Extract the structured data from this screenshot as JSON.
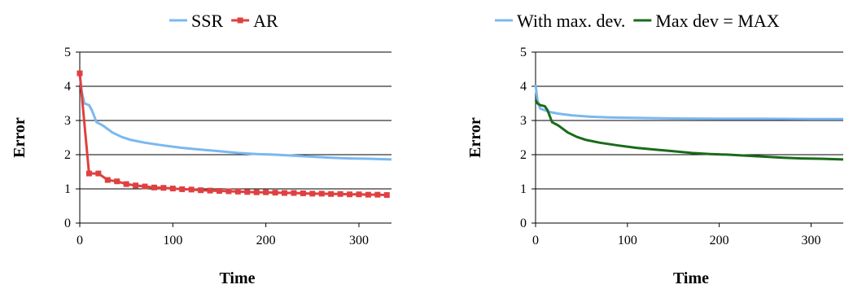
{
  "chart_data": [
    {
      "type": "line",
      "title": "",
      "xlabel": "Time",
      "ylabel": "Error",
      "xlim": [
        0,
        335
      ],
      "ylim": [
        0,
        5
      ],
      "x_ticks": [
        0,
        100,
        200,
        300
      ],
      "y_ticks": [
        0,
        1,
        2,
        3,
        4,
        5
      ],
      "grid": "horizontal",
      "legend_position": "top",
      "series": [
        {
          "name": "SSR",
          "color": "#7ab8f0",
          "marker": "none",
          "x": [
            0,
            2,
            5,
            10,
            13,
            18,
            25,
            35,
            45,
            55,
            70,
            90,
            110,
            130,
            150,
            170,
            190,
            210,
            230,
            250,
            270,
            290,
            310,
            335
          ],
          "y": [
            4.35,
            3.85,
            3.5,
            3.45,
            3.3,
            2.95,
            2.85,
            2.65,
            2.52,
            2.43,
            2.35,
            2.27,
            2.2,
            2.15,
            2.1,
            2.05,
            2.02,
            2.0,
            1.97,
            1.94,
            1.91,
            1.89,
            1.88,
            1.86
          ]
        },
        {
          "name": "AR",
          "color": "#e04040",
          "marker": "square",
          "x": [
            0,
            10,
            20,
            30,
            40,
            50,
            60,
            70,
            80,
            90,
            100,
            110,
            120,
            130,
            140,
            150,
            160,
            170,
            180,
            190,
            200,
            210,
            220,
            230,
            240,
            250,
            260,
            270,
            280,
            290,
            300,
            310,
            320,
            330
          ],
          "y": [
            4.38,
            1.45,
            1.45,
            1.26,
            1.22,
            1.14,
            1.1,
            1.07,
            1.04,
            1.03,
            1.01,
            0.99,
            0.98,
            0.96,
            0.95,
            0.94,
            0.93,
            0.92,
            0.91,
            0.9,
            0.9,
            0.89,
            0.88,
            0.88,
            0.87,
            0.86,
            0.86,
            0.85,
            0.85,
            0.84,
            0.84,
            0.83,
            0.83,
            0.82
          ]
        }
      ]
    },
    {
      "type": "line",
      "title": "",
      "xlabel": "Time",
      "ylabel": "Error",
      "xlim": [
        0,
        335
      ],
      "ylim": [
        0,
        5
      ],
      "x_ticks": [
        0,
        100,
        200,
        300
      ],
      "y_ticks": [
        0,
        1,
        2,
        3,
        4,
        5
      ],
      "grid": "horizontal",
      "legend_position": "top",
      "series": [
        {
          "name": "With max. dev.",
          "color": "#7ab8f0",
          "marker": "none",
          "x": [
            0,
            2,
            5,
            10,
            15,
            25,
            40,
            60,
            80,
            100,
            150,
            200,
            250,
            300,
            335
          ],
          "y": [
            4.05,
            3.6,
            3.35,
            3.3,
            3.25,
            3.2,
            3.15,
            3.11,
            3.09,
            3.08,
            3.06,
            3.05,
            3.05,
            3.04,
            3.04
          ]
        },
        {
          "name": "Max dev = MAX",
          "color": "#1a6b1a",
          "marker": "none",
          "x": [
            0,
            2,
            5,
            10,
            13,
            18,
            25,
            35,
            45,
            55,
            70,
            90,
            110,
            130,
            150,
            170,
            190,
            210,
            230,
            250,
            270,
            290,
            310,
            335
          ],
          "y": [
            3.6,
            3.5,
            3.45,
            3.42,
            3.3,
            2.95,
            2.85,
            2.65,
            2.52,
            2.43,
            2.35,
            2.27,
            2.2,
            2.15,
            2.1,
            2.05,
            2.02,
            2.0,
            1.97,
            1.94,
            1.91,
            1.89,
            1.88,
            1.86
          ]
        }
      ]
    }
  ]
}
